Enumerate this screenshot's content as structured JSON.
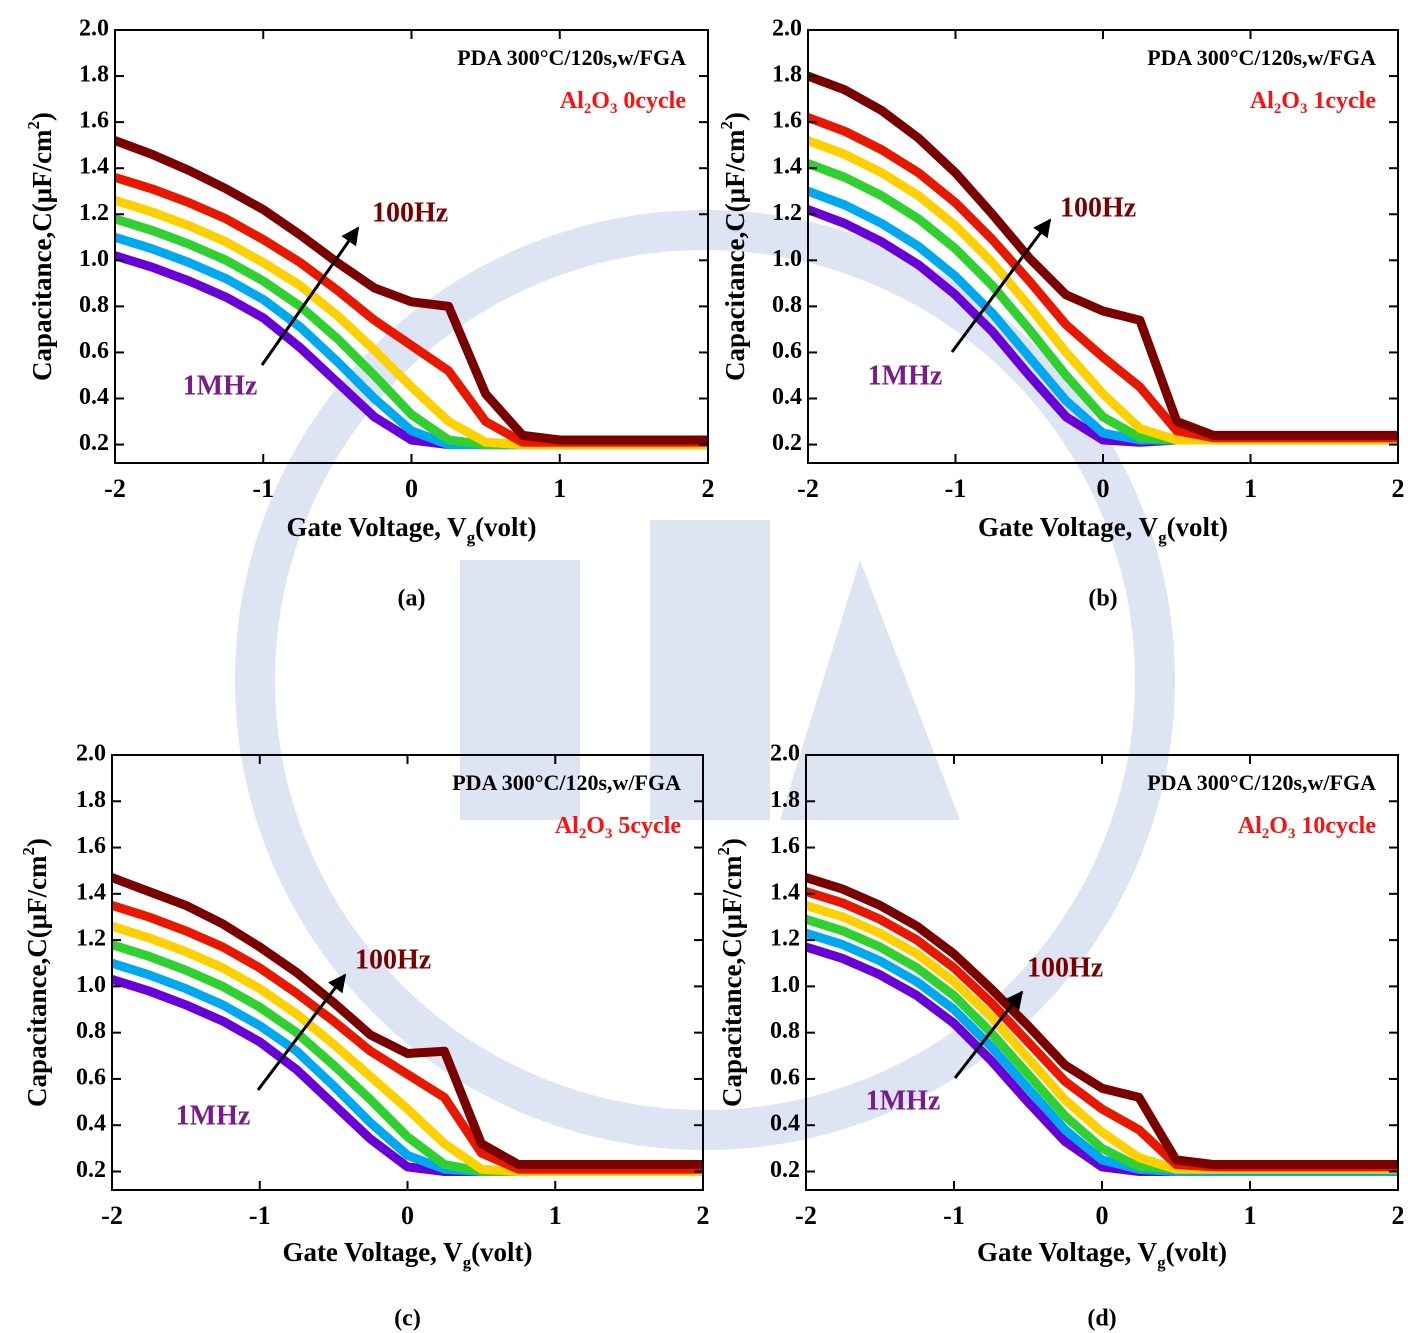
{
  "chart_data": [
    {
      "type": "line",
      "title": "PDA 300°C/120s,w/FGA",
      "material": [
        "Al",
        "2",
        "O",
        "3",
        " 0cycle"
      ],
      "high_label": "100Hz",
      "low_label": "1MHz",
      "panel_label": "(a)",
      "x_label": [
        "Gate Voltage, V",
        "g",
        "(volt)"
      ],
      "y_label": [
        "Capacitance,C(μF/cm",
        "2",
        ")"
      ],
      "xlim": [
        -2,
        2
      ],
      "ylim": [
        0.12,
        2.0
      ],
      "xticks": [
        -2,
        -1,
        0,
        1,
        2
      ],
      "yticks": [
        0.2,
        0.4,
        0.6,
        0.8,
        {
          "value": 1,
          "label": "1.0"
        },
        1.2,
        1.4,
        1.6,
        1.8,
        {
          "value": 2,
          "label": "2.0"
        }
      ],
      "x": [
        -2,
        -1.75,
        -1.5,
        -1.25,
        -1,
        -0.75,
        -0.5,
        -0.25,
        0,
        0.25,
        0.5,
        0.75,
        1,
        1.25,
        1.5,
        1.75,
        2
      ],
      "series": [
        {
          "color": "#6a00d8",
          "values": [
            1.02,
            0.97,
            0.91,
            0.84,
            0.75,
            0.62,
            0.47,
            0.32,
            0.22,
            0.2,
            0.2,
            0.2,
            0.2,
            0.2,
            0.2,
            0.2,
            0.2
          ]
        },
        {
          "color": "#00a8f0",
          "values": [
            1.1,
            1.05,
            0.99,
            0.92,
            0.83,
            0.71,
            0.56,
            0.4,
            0.26,
            0.2,
            0.2,
            0.2,
            0.2,
            0.2,
            0.2,
            0.2,
            0.2
          ]
        },
        {
          "color": "#30d030",
          "values": [
            1.18,
            1.13,
            1.07,
            1.0,
            0.91,
            0.8,
            0.66,
            0.5,
            0.33,
            0.22,
            0.2,
            0.2,
            0.2,
            0.2,
            0.2,
            0.2,
            0.2
          ]
        },
        {
          "color": "#ffd000",
          "values": [
            1.26,
            1.21,
            1.15,
            1.08,
            0.99,
            0.89,
            0.76,
            0.61,
            0.45,
            0.3,
            0.21,
            0.2,
            0.2,
            0.2,
            0.2,
            0.2,
            0.2
          ]
        },
        {
          "color": "#e81800",
          "values": [
            1.36,
            1.31,
            1.25,
            1.18,
            1.09,
            0.99,
            0.87,
            0.74,
            0.63,
            0.52,
            0.3,
            0.21,
            0.21,
            0.21,
            0.21,
            0.21,
            0.21
          ]
        },
        {
          "color": "#7a0000",
          "values": [
            1.52,
            1.46,
            1.39,
            1.31,
            1.22,
            1.11,
            0.99,
            0.88,
            0.82,
            0.8,
            0.42,
            0.24,
            0.22,
            0.22,
            0.22,
            0.22,
            0.22
          ]
        }
      ]
    },
    {
      "type": "line",
      "title": "PDA 300°C/120s,w/FGA",
      "material": [
        "Al",
        "2",
        "O",
        "3",
        " 1cycle"
      ],
      "high_label": "100Hz",
      "low_label": "1MHz",
      "panel_label": "(b)",
      "x_label": [
        "Gate Voltage, V",
        "g",
        "(volt)"
      ],
      "y_label": [
        "Capacitance,C(μF/cm",
        "2",
        ")"
      ],
      "xlim": [
        -2,
        2
      ],
      "ylim": [
        0.12,
        2.0
      ],
      "xticks": [
        -2,
        -1,
        0,
        1,
        2
      ],
      "yticks": [
        0.2,
        0.4,
        0.6,
        0.8,
        {
          "value": 1,
          "label": "1.0"
        },
        1.2,
        1.4,
        1.6,
        1.8,
        {
          "value": 2,
          "label": "2.0"
        }
      ],
      "x": [
        -2,
        -1.75,
        -1.5,
        -1.25,
        -1,
        -0.75,
        -0.5,
        -0.25,
        0,
        0.25,
        0.5,
        0.75,
        1,
        1.25,
        1.5,
        1.75,
        2
      ],
      "series": [
        {
          "color": "#6a00d8",
          "values": [
            1.22,
            1.16,
            1.08,
            0.98,
            0.85,
            0.69,
            0.5,
            0.32,
            0.22,
            0.21,
            0.22,
            0.22,
            0.22,
            0.22,
            0.22,
            0.22,
            0.22
          ]
        },
        {
          "color": "#00a8f0",
          "values": [
            1.3,
            1.24,
            1.16,
            1.06,
            0.93,
            0.77,
            0.58,
            0.39,
            0.25,
            0.22,
            0.22,
            0.22,
            0.22,
            0.22,
            0.22,
            0.22,
            0.22
          ]
        },
        {
          "color": "#30d030",
          "values": [
            1.42,
            1.36,
            1.28,
            1.18,
            1.05,
            0.89,
            0.7,
            0.5,
            0.32,
            0.23,
            0.22,
            0.22,
            0.22,
            0.22,
            0.22,
            0.22,
            0.22
          ]
        },
        {
          "color": "#ffd000",
          "values": [
            1.52,
            1.46,
            1.38,
            1.28,
            1.15,
            0.99,
            0.8,
            0.6,
            0.42,
            0.27,
            0.22,
            0.22,
            0.22,
            0.22,
            0.22,
            0.22,
            0.22
          ]
        },
        {
          "color": "#e81800",
          "values": [
            1.62,
            1.56,
            1.48,
            1.38,
            1.25,
            1.09,
            0.91,
            0.72,
            0.58,
            0.45,
            0.26,
            0.23,
            0.23,
            0.23,
            0.23,
            0.23,
            0.23
          ]
        },
        {
          "color": "#7a0000",
          "values": [
            1.8,
            1.74,
            1.65,
            1.53,
            1.38,
            1.2,
            1.01,
            0.85,
            0.78,
            0.74,
            0.3,
            0.24,
            0.24,
            0.24,
            0.24,
            0.24,
            0.24
          ]
        }
      ]
    },
    {
      "type": "line",
      "title": "PDA 300°C/120s,w/FGA",
      "material": [
        "Al",
        "2",
        "O",
        "3",
        " 5cycle"
      ],
      "high_label": "100Hz",
      "low_label": "1MHz",
      "panel_label": "(c)",
      "x_label": [
        "Gate Voltage, V",
        "g",
        "(volt)"
      ],
      "y_label": [
        "Capacitance,C(μF/cm",
        "2",
        ")"
      ],
      "xlim": [
        -2,
        2
      ],
      "ylim": [
        0.12,
        2.0
      ],
      "xticks": [
        -2,
        -1,
        0,
        1,
        2
      ],
      "yticks": [
        0.2,
        0.4,
        0.6,
        0.8,
        {
          "value": 1,
          "label": "1.0"
        },
        1.2,
        1.4,
        1.6,
        1.8,
        {
          "value": 2,
          "label": "2.0"
        }
      ],
      "x": [
        -2,
        -1.75,
        -1.5,
        -1.25,
        -1,
        -0.75,
        -0.5,
        -0.25,
        0,
        0.25,
        0.5,
        0.75,
        1,
        1.25,
        1.5,
        1.75,
        2
      ],
      "series": [
        {
          "color": "#6a00d8",
          "values": [
            1.03,
            0.98,
            0.92,
            0.85,
            0.76,
            0.64,
            0.49,
            0.34,
            0.22,
            0.2,
            0.2,
            0.2,
            0.2,
            0.2,
            0.2,
            0.2,
            0.2
          ]
        },
        {
          "color": "#00a8f0",
          "values": [
            1.1,
            1.05,
            0.99,
            0.92,
            0.83,
            0.72,
            0.57,
            0.41,
            0.27,
            0.21,
            0.2,
            0.2,
            0.2,
            0.2,
            0.2,
            0.2,
            0.2
          ]
        },
        {
          "color": "#30d030",
          "values": [
            1.18,
            1.13,
            1.07,
            1.0,
            0.91,
            0.8,
            0.66,
            0.51,
            0.35,
            0.23,
            0.2,
            0.2,
            0.2,
            0.2,
            0.2,
            0.2,
            0.2
          ]
        },
        {
          "color": "#ffd000",
          "values": [
            1.26,
            1.21,
            1.15,
            1.08,
            0.99,
            0.88,
            0.75,
            0.61,
            0.47,
            0.32,
            0.21,
            0.2,
            0.2,
            0.2,
            0.2,
            0.2,
            0.2
          ]
        },
        {
          "color": "#e81800",
          "values": [
            1.35,
            1.3,
            1.24,
            1.17,
            1.08,
            0.97,
            0.85,
            0.72,
            0.62,
            0.52,
            0.28,
            0.21,
            0.21,
            0.21,
            0.21,
            0.21,
            0.21
          ]
        },
        {
          "color": "#7a0000",
          "values": [
            1.47,
            1.41,
            1.35,
            1.27,
            1.17,
            1.06,
            0.93,
            0.79,
            0.71,
            0.72,
            0.32,
            0.23,
            0.23,
            0.23,
            0.23,
            0.23,
            0.23
          ]
        }
      ]
    },
    {
      "type": "line",
      "title": "PDA 300°C/120s,w/FGA",
      "material": [
        "Al",
        "2",
        "O",
        "3",
        " 10cycle"
      ],
      "high_label": "100Hz",
      "low_label": "1MHz",
      "panel_label": "(d)",
      "x_label": [
        "Gate Voltage, V",
        "g",
        "(volt)"
      ],
      "y_label": [
        "Capacitance,C(μF/cm",
        "2",
        ")"
      ],
      "xlim": [
        -2,
        2
      ],
      "ylim": [
        0.12,
        2.0
      ],
      "xticks": [
        -2,
        -1,
        0,
        1,
        2
      ],
      "yticks": [
        0.2,
        0.4,
        0.6,
        0.8,
        {
          "value": 1,
          "label": "1.0"
        },
        1.2,
        1.4,
        1.6,
        1.8,
        {
          "value": 2,
          "label": "2.0"
        }
      ],
      "x": [
        -2,
        -1.75,
        -1.5,
        -1.25,
        -1,
        -0.75,
        -0.5,
        -0.25,
        0,
        0.25,
        0.5,
        0.75,
        1,
        1.25,
        1.5,
        1.75,
        2
      ],
      "series": [
        {
          "color": "#6a00d8",
          "values": [
            1.17,
            1.12,
            1.05,
            0.96,
            0.84,
            0.68,
            0.5,
            0.33,
            0.22,
            0.2,
            0.2,
            0.2,
            0.2,
            0.2,
            0.2,
            0.2,
            0.2
          ]
        },
        {
          "color": "#00a8f0",
          "values": [
            1.23,
            1.18,
            1.11,
            1.02,
            0.9,
            0.74,
            0.56,
            0.38,
            0.25,
            0.21,
            0.2,
            0.2,
            0.2,
            0.2,
            0.2,
            0.2,
            0.2
          ]
        },
        {
          "color": "#30d030",
          "values": [
            1.29,
            1.24,
            1.17,
            1.08,
            0.96,
            0.8,
            0.62,
            0.44,
            0.3,
            0.22,
            0.21,
            0.21,
            0.21,
            0.21,
            0.21,
            0.21,
            0.21
          ]
        },
        {
          "color": "#ffd000",
          "values": [
            1.35,
            1.3,
            1.23,
            1.14,
            1.02,
            0.87,
            0.69,
            0.51,
            0.37,
            0.26,
            0.21,
            0.21,
            0.21,
            0.21,
            0.21,
            0.21,
            0.21
          ]
        },
        {
          "color": "#e81800",
          "values": [
            1.41,
            1.36,
            1.29,
            1.2,
            1.08,
            0.93,
            0.76,
            0.59,
            0.47,
            0.38,
            0.23,
            0.22,
            0.22,
            0.22,
            0.22,
            0.22,
            0.22
          ]
        },
        {
          "color": "#7a0000",
          "values": [
            1.47,
            1.42,
            1.35,
            1.26,
            1.14,
            0.99,
            0.83,
            0.66,
            0.56,
            0.52,
            0.25,
            0.23,
            0.23,
            0.23,
            0.23,
            0.23,
            0.23
          ]
        }
      ]
    }
  ]
}
